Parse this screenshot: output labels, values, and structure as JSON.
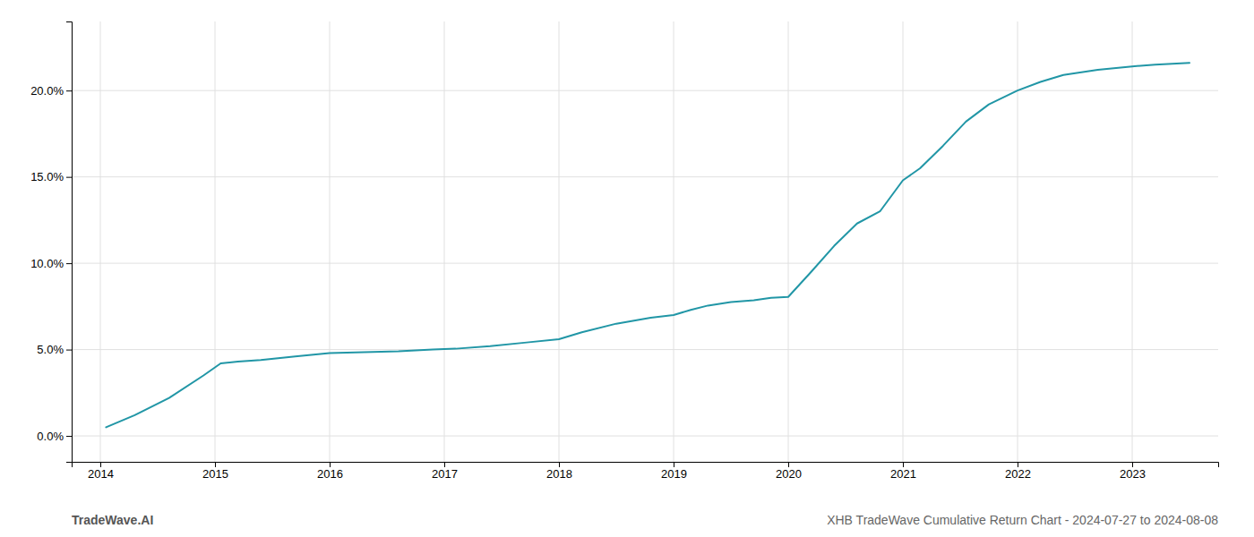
{
  "chart_data": {
    "type": "line",
    "x": [
      2014.05,
      2014.3,
      2014.6,
      2014.9,
      2015.05,
      2015.2,
      2015.4,
      2015.7,
      2016.0,
      2016.3,
      2016.6,
      2016.9,
      2017.1,
      2017.4,
      2017.7,
      2018.0,
      2018.2,
      2018.5,
      2018.8,
      2019.0,
      2019.15,
      2019.3,
      2019.5,
      2019.7,
      2019.85,
      2020.0,
      2020.2,
      2020.4,
      2020.6,
      2020.8,
      2021.0,
      2021.15,
      2021.35,
      2021.55,
      2021.75,
      2022.0,
      2022.2,
      2022.4,
      2022.7,
      2023.0,
      2023.2,
      2023.5
    ],
    "values": [
      0.5,
      1.2,
      2.2,
      3.5,
      4.2,
      4.3,
      4.4,
      4.6,
      4.8,
      4.85,
      4.9,
      5.0,
      5.05,
      5.2,
      5.4,
      5.6,
      6.0,
      6.5,
      6.85,
      7.0,
      7.3,
      7.55,
      7.75,
      7.85,
      8.0,
      8.05,
      9.5,
      11.0,
      12.3,
      13.0,
      14.8,
      15.5,
      16.8,
      18.2,
      19.2,
      20.0,
      20.5,
      20.9,
      21.2,
      21.4,
      21.5,
      21.6
    ],
    "color": "#2196a6",
    "xlim": [
      2013.75,
      2023.75
    ],
    "ylim": [
      -1.5,
      24.0
    ],
    "xticks": [
      2014,
      2015,
      2016,
      2017,
      2018,
      2019,
      2020,
      2021,
      2022,
      2023
    ],
    "yticks": [
      {
        "value": 0.0,
        "label": "0.0%"
      },
      {
        "value": 5.0,
        "label": "5.0%"
      },
      {
        "value": 10.0,
        "label": "10.0%"
      },
      {
        "value": 15.0,
        "label": "15.0%"
      },
      {
        "value": 20.0,
        "label": "20.0%"
      }
    ],
    "grid": true,
    "annotations": [
      "TradeWave.AI",
      "XHB TradeWave Cumulative Return Chart - 2024-07-27 to 2024-08-08"
    ]
  }
}
